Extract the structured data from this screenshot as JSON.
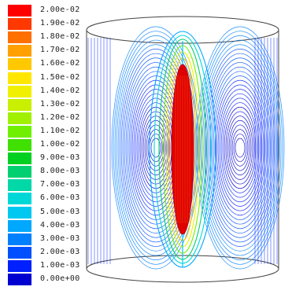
{
  "legend": {
    "labels": [
      "2.00e-02",
      "1.90e-02",
      "1.80e-02",
      "1.70e-02",
      "1.60e-02",
      "1.50e-02",
      "1.40e-02",
      "1.30e-02",
      "1.20e-02",
      "1.10e-02",
      "1.00e-02",
      "9.00e-03",
      "8.00e-03",
      "7.00e-03",
      "6.00e-03",
      "5.00e-03",
      "4.00e-03",
      "3.00e-03",
      "2.00e-03",
      "1.00e-03",
      "0.00e+00"
    ],
    "colors": [
      "#ff0000",
      "#ff3800",
      "#ff7000",
      "#ffa000",
      "#ffc800",
      "#ffe600",
      "#f0f000",
      "#c8f000",
      "#a0f000",
      "#70f000",
      "#40e000",
      "#00d020",
      "#00d070",
      "#00d8a8",
      "#00d8d8",
      "#00c8f0",
      "#00a8ff",
      "#0080ff",
      "#0050ff",
      "#0020ff",
      "#0000d0"
    ]
  }
}
